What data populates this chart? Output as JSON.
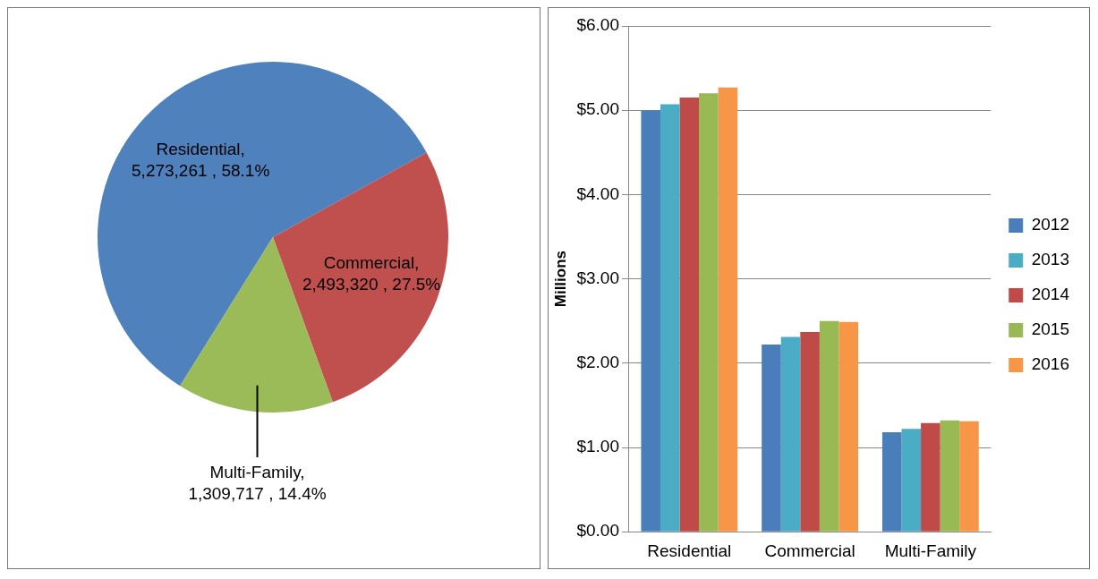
{
  "chart_data": [
    {
      "type": "pie",
      "categories": [
        "Residential",
        "Commercial",
        "Multi-Family"
      ],
      "values": [
        5273261,
        2493320,
        1309717
      ],
      "colors": [
        "#4f81bd",
        "#c0504d",
        "#9bbb59"
      ],
      "value_labels": [
        ", 5,273,261 , 58.1%",
        ", 2,493,320 , 27.5%",
        ", 1,309,717 , 14.4%"
      ]
    },
    {
      "type": "bar",
      "ylabel": "Millions",
      "categories": [
        "Residential",
        "Commercial",
        "Multi-Family"
      ],
      "series": [
        {
          "name": "2012",
          "color": "#4a7ebb",
          "values": [
            5.0,
            2.22,
            1.18
          ]
        },
        {
          "name": "2013",
          "color": "#4bacc6",
          "values": [
            5.07,
            2.31,
            1.22
          ]
        },
        {
          "name": "2014",
          "color": "#be4b48",
          "values": [
            5.15,
            2.37,
            1.29
          ]
        },
        {
          "name": "2015",
          "color": "#98b954",
          "values": [
            5.2,
            2.5,
            1.32
          ]
        },
        {
          "name": "2016",
          "color": "#f79646",
          "values": [
            5.27,
            2.49,
            1.31
          ]
        }
      ],
      "ylim": [
        0,
        6
      ],
      "yticks": [
        {
          "value": 0,
          "label": "$0.00"
        },
        {
          "value": 1,
          "label": "$1.00"
        },
        {
          "value": 2,
          "label": "$2.00"
        },
        {
          "value": 3,
          "label": "$3.00"
        },
        {
          "value": 4,
          "label": "$4.00"
        },
        {
          "value": 5,
          "label": "$5.00"
        },
        {
          "value": 6,
          "label": "$6.00"
        }
      ],
      "grid": "y",
      "legend": "right"
    }
  ]
}
